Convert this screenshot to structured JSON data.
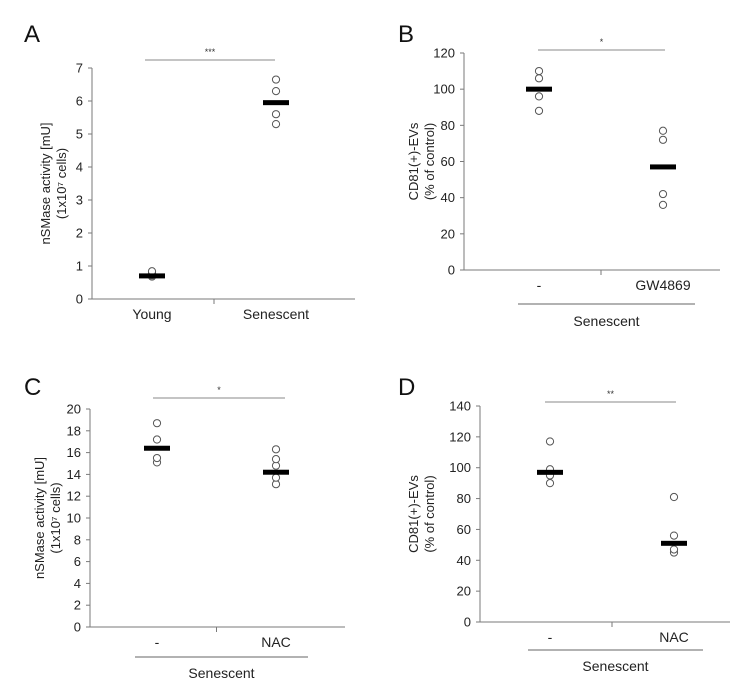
{
  "chart_data": [
    {
      "panel": "A",
      "type": "scatter",
      "ylabel_lines": [
        "nSMase activity [mU]",
        "(1x10⁷ cells)"
      ],
      "ylim": [
        0,
        7
      ],
      "yticks": [
        0,
        1,
        2,
        3,
        4,
        5,
        6,
        7
      ],
      "categories": [
        "Young",
        "Senescent"
      ],
      "points": [
        [
          0.68,
          0.72,
          0.78,
          0.84
        ],
        [
          5.3,
          5.6,
          6.3,
          6.65
        ]
      ],
      "means": [
        0.7,
        5.95
      ],
      "significance": "***",
      "group_label": ""
    },
    {
      "panel": "B",
      "type": "scatter",
      "ylabel_lines": [
        "CD81(+)-EVs",
        "(% of control)"
      ],
      "ylim": [
        0,
        120
      ],
      "yticks": [
        0,
        20,
        40,
        60,
        80,
        100,
        120
      ],
      "categories": [
        "-",
        "GW4869"
      ],
      "points": [
        [
          88,
          96,
          106,
          110
        ],
        [
          36,
          42,
          72,
          77
        ]
      ],
      "means": [
        100,
        57
      ],
      "significance": "*",
      "group_label": "Senescent"
    },
    {
      "panel": "C",
      "type": "scatter",
      "ylabel_lines": [
        "nSMase activity [mU]",
        "(1x10⁷ cells)"
      ],
      "ylim": [
        0,
        20
      ],
      "yticks": [
        0,
        2,
        4,
        6,
        8,
        10,
        12,
        14,
        16,
        18,
        20
      ],
      "categories": [
        "-",
        "NAC"
      ],
      "points": [
        [
          15.1,
          15.5,
          17.2,
          18.7
        ],
        [
          13.1,
          13.7,
          14.8,
          15.4,
          16.3
        ]
      ],
      "means": [
        16.4,
        14.2
      ],
      "significance": "*",
      "group_label": "Senescent"
    },
    {
      "panel": "D",
      "type": "scatter",
      "ylabel_lines": [
        "CD81(+)-EVs",
        "(% of control)"
      ],
      "ylim": [
        0,
        140
      ],
      "yticks": [
        0,
        20,
        40,
        60,
        80,
        100,
        120,
        140
      ],
      "categories": [
        "-",
        "NAC"
      ],
      "points": [
        [
          90,
          95,
          99,
          117
        ],
        [
          45,
          47,
          56,
          81
        ]
      ],
      "means": [
        97,
        51
      ],
      "significance": "**",
      "group_label": "Senescent"
    }
  ]
}
